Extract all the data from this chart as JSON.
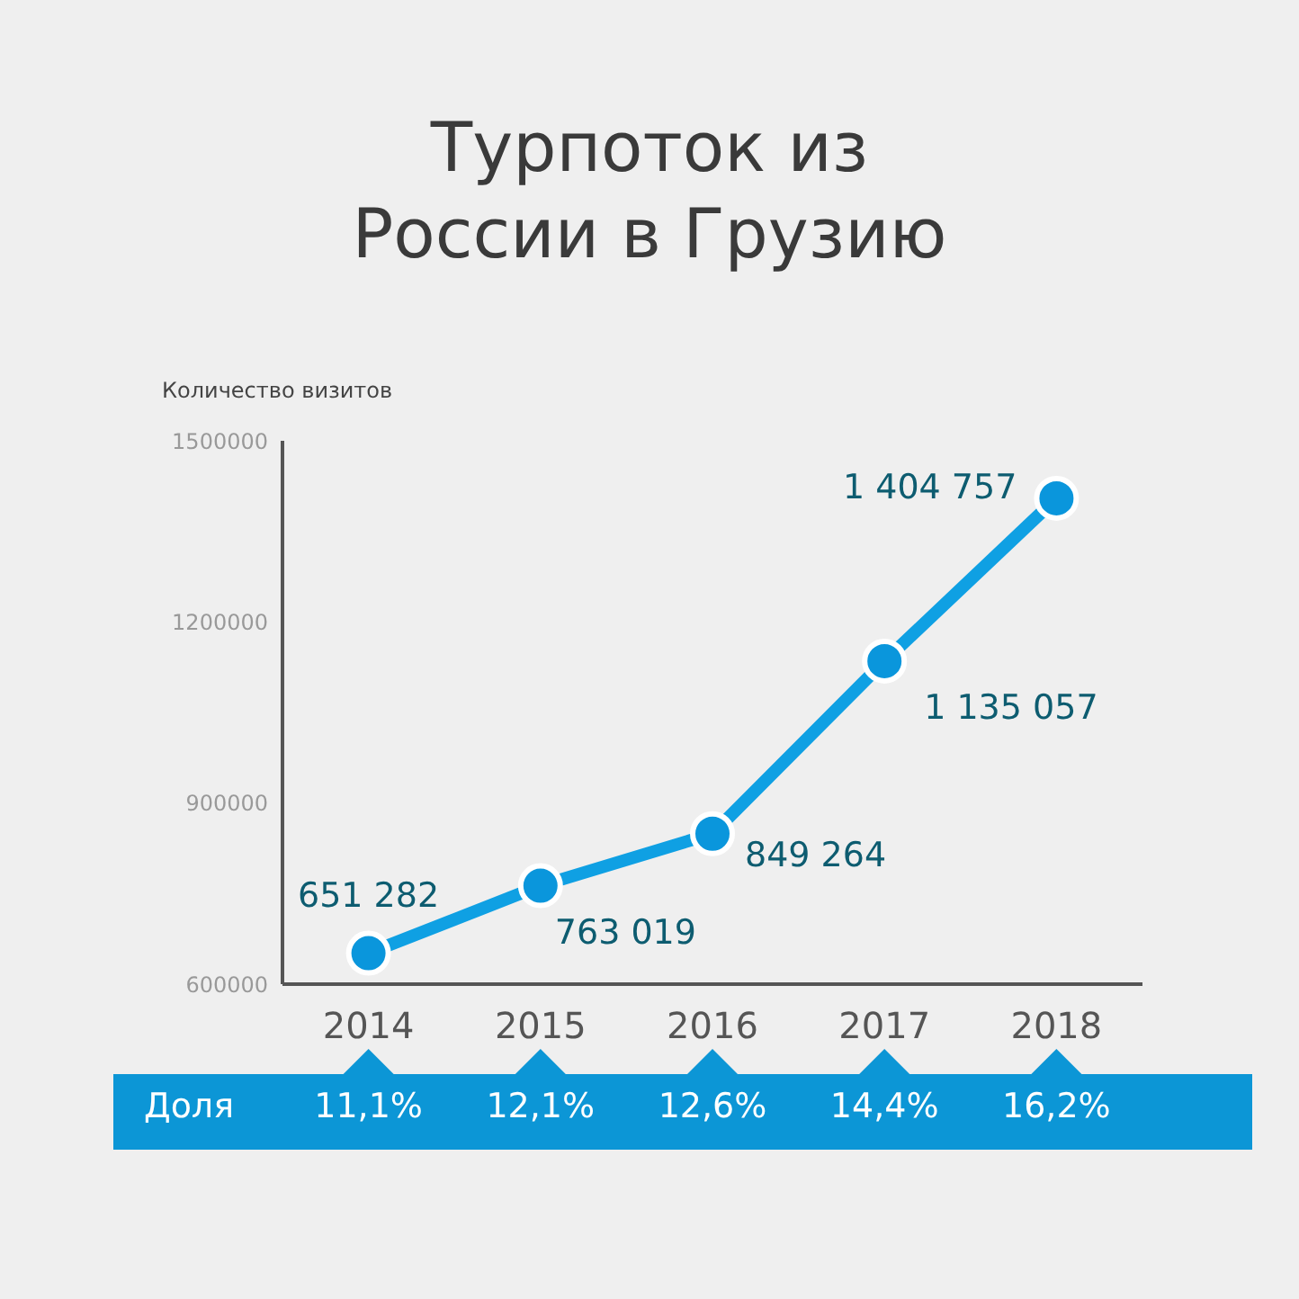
{
  "chart_data": {
    "type": "line",
    "title": "Турпоток из\nРоссии в Грузию",
    "ylabel": "Количество визитов",
    "categories": [
      "2014",
      "2015",
      "2016",
      "2017",
      "2018"
    ],
    "series": [
      {
        "color": "#0fa0e3",
        "values": [
          651282,
          763019,
          849264,
          1135057,
          1404757
        ],
        "value_labels": [
          "651 282",
          "763 019",
          "849 264",
          "1 135 057",
          "1 404 757"
        ]
      }
    ],
    "ylim": [
      600000,
      1500000
    ],
    "yticks": [
      600000,
      900000,
      1200000,
      1500000
    ],
    "grid": false,
    "legend": false,
    "marker": "circle",
    "line_style": "solid",
    "annotations": [
      "Доля",
      "11,1%",
      "12,1%",
      "12,6%",
      "14,4%",
      "16,2%"
    ]
  }
}
